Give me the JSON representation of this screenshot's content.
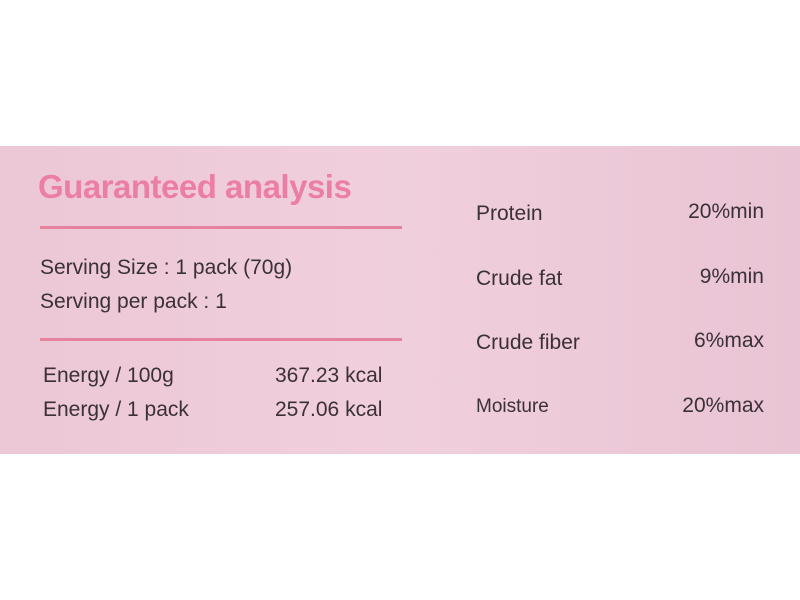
{
  "title": "Guaranteed analysis",
  "serving": [
    "Serving Size : 1 pack (70g)",
    "Serving per pack : 1"
  ],
  "energy": [
    [
      "Energy / 100g",
      "367.23 kcal"
    ],
    [
      "Energy / 1 pack",
      "257.06 kcal"
    ]
  ],
  "analysis": [
    [
      "Protein",
      "20%min"
    ],
    [
      "Crude fat",
      "9%min"
    ],
    [
      "Crude fiber",
      "6%max"
    ],
    [
      "Moisture",
      "20%max"
    ]
  ]
}
